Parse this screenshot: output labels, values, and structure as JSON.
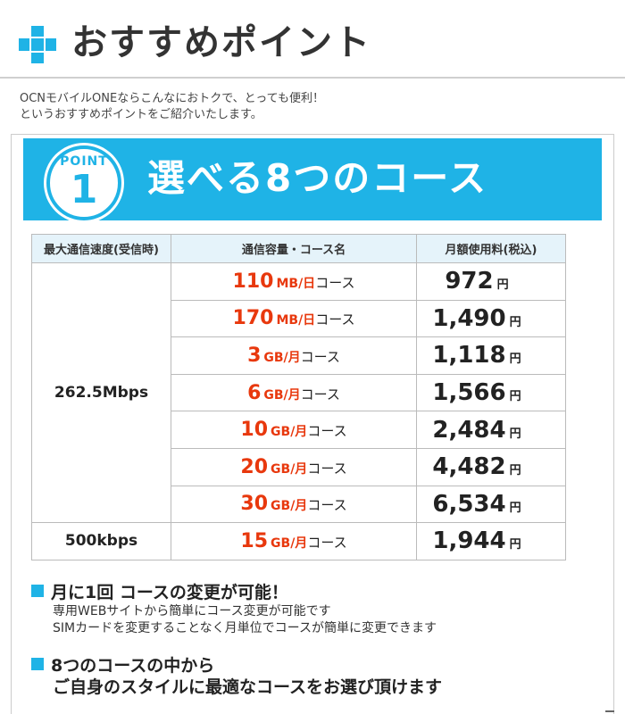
{
  "header": {
    "title": "おすすめポイント",
    "icon": "plus-icon",
    "accent": "#1fb3e6"
  },
  "intro": {
    "line1": "OCNモバイルONEならこんなにおトクで、とっても便利！",
    "line2": "というおすすめポイントをご紹介いたします。"
  },
  "banner": {
    "badge_label": "POINT",
    "badge_number": "1",
    "title": "選べる8つのコース"
  },
  "table": {
    "headers": [
      "最大通信速度(受信時)",
      "通信容量・コース名",
      "月額使用料(税込)"
    ],
    "speed_groups": [
      "262.5Mbps",
      "500kbps"
    ],
    "rows": [
      {
        "num": "110",
        "unit": "MB/日",
        "suffix": "コース",
        "price": "972",
        "yen": "円"
      },
      {
        "num": "170",
        "unit": "MB/日",
        "suffix": "コース",
        "price": "1,490",
        "yen": "円"
      },
      {
        "num": "3",
        "unit": "GB/月",
        "suffix": "コース",
        "price": "1,118",
        "yen": "円"
      },
      {
        "num": "6",
        "unit": "GB/月",
        "suffix": "コース",
        "price": "1,566",
        "yen": "円"
      },
      {
        "num": "10",
        "unit": "GB/月",
        "suffix": "コース",
        "price": "2,484",
        "yen": "円"
      },
      {
        "num": "20",
        "unit": "GB/月",
        "suffix": "コース",
        "price": "4,482",
        "yen": "円"
      },
      {
        "num": "30",
        "unit": "GB/月",
        "suffix": "コース",
        "price": "6,534",
        "yen": "円"
      },
      {
        "num": "15",
        "unit": "GB/月",
        "suffix": "コース",
        "price": "1,944",
        "yen": "円"
      }
    ],
    "colors": {
      "course_highlight": "#e8380d",
      "header_bg": "#e5f3fa"
    }
  },
  "points": [
    {
      "heading": "月に1回 コースの変更が可能！",
      "desc1": "専用WEBサイトから簡単にコース変更が可能です",
      "desc2": "SIMカードを変更することなく月単位でコースが簡単に変更できます"
    },
    {
      "heading": "8つのコースの中から",
      "heading2": "ご自身のスタイルに最適なコースをお選び頂けます"
    }
  ]
}
